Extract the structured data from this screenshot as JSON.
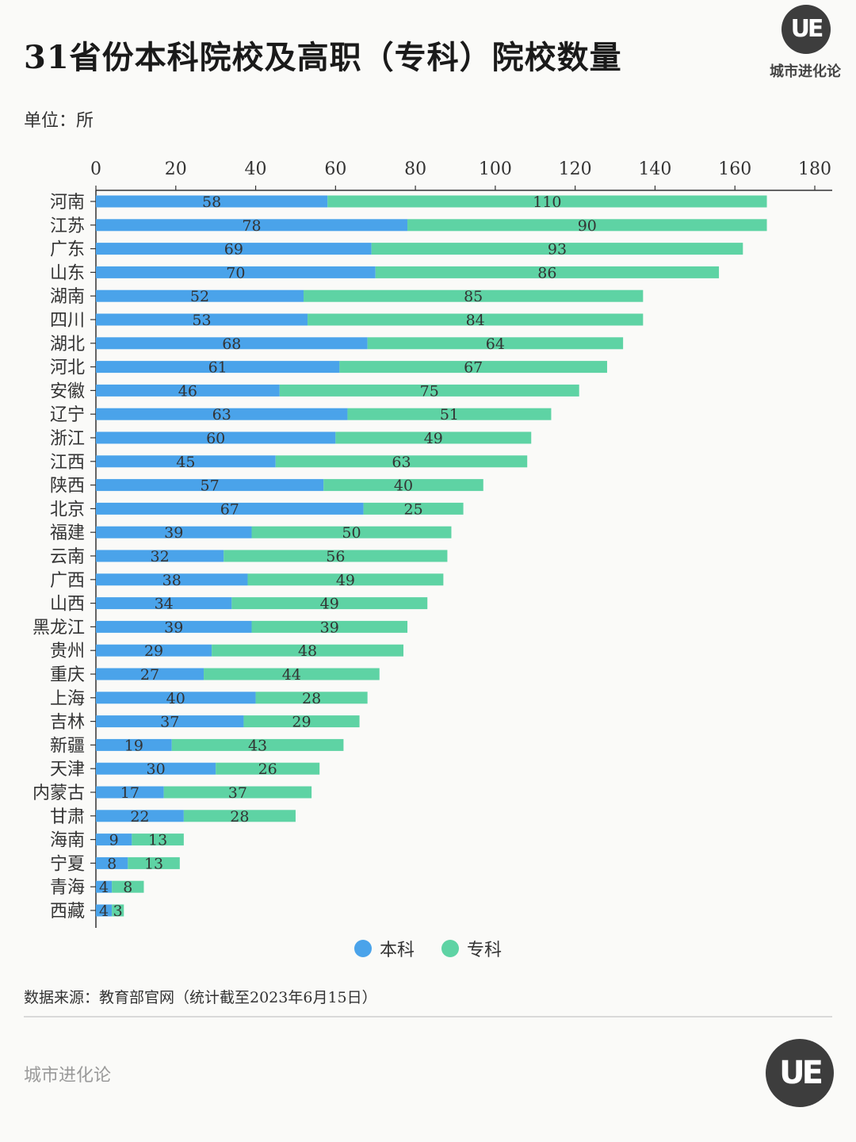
{
  "header": {
    "title": "31省份本科院校及高职（专科）院校数量",
    "unit": "单位：所"
  },
  "brand": {
    "logo_mark": "UE",
    "logo_name": "城市进化论",
    "footer_name": "城市进化论"
  },
  "legend": {
    "items": [
      {
        "label": "本科",
        "color": "#4aa3ea"
      },
      {
        "label": "专科",
        "color": "#5ed3a4"
      }
    ]
  },
  "footer": {
    "source": "数据来源：教育部官网（统计截至2023年6月15日）"
  },
  "chart_data": {
    "type": "bar",
    "orientation": "horizontal",
    "stacked": true,
    "xlim": [
      0,
      180
    ],
    "xticks": [
      0,
      20,
      40,
      60,
      80,
      100,
      120,
      140,
      160,
      180
    ],
    "xaxis_position": "top",
    "grid": false,
    "legend_position": "bottom",
    "categories": [
      "河南",
      "江苏",
      "广东",
      "山东",
      "湖南",
      "四川",
      "湖北",
      "河北",
      "安徽",
      "辽宁",
      "浙江",
      "江西",
      "陕西",
      "北京",
      "福建",
      "云南",
      "广西",
      "山西",
      "黑龙江",
      "贵州",
      "重庆",
      "上海",
      "吉林",
      "新疆",
      "天津",
      "内蒙古",
      "甘肃",
      "海南",
      "宁夏",
      "青海",
      "西藏"
    ],
    "series": [
      {
        "name": "本科",
        "color": "#4aa3ea",
        "values": [
          58,
          78,
          69,
          70,
          52,
          53,
          68,
          61,
          46,
          63,
          60,
          45,
          57,
          67,
          39,
          32,
          38,
          34,
          39,
          29,
          27,
          40,
          37,
          19,
          30,
          17,
          22,
          9,
          8,
          4,
          4
        ]
      },
      {
        "name": "专科",
        "color": "#5ed3a4",
        "values": [
          110,
          90,
          93,
          86,
          85,
          84,
          64,
          67,
          75,
          51,
          49,
          63,
          40,
          25,
          50,
          56,
          49,
          49,
          39,
          48,
          44,
          28,
          29,
          43,
          26,
          37,
          28,
          13,
          13,
          8,
          3
        ]
      }
    ]
  }
}
